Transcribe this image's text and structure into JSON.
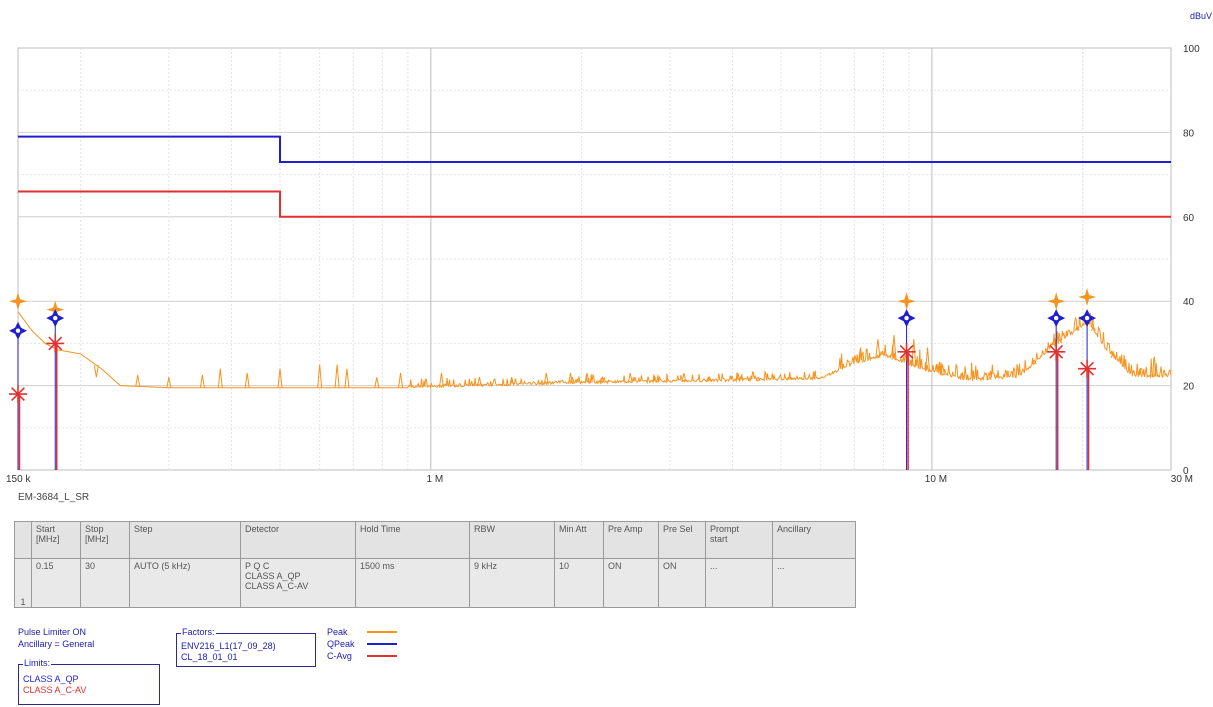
{
  "chart_data": {
    "type": "line",
    "title": "",
    "ylabel": "dBuV",
    "xlabel": "",
    "x_scale": "log",
    "xlim_mhz": [
      0.15,
      30
    ],
    "ylim": [
      0,
      100
    ],
    "y_ticks": [
      0,
      20,
      40,
      60,
      80,
      100
    ],
    "x_tick_labels": [
      {
        "value": 0.15,
        "label": "150 k"
      },
      {
        "value": 1,
        "label": "1 M"
      },
      {
        "value": 10,
        "label": "10 M"
      },
      {
        "value": 30,
        "label": "30 M"
      }
    ],
    "grid": true,
    "limit_lines": [
      {
        "name": "CLASS A_QP",
        "color": "#1f1fcf",
        "points": [
          [
            0.15,
            79
          ],
          [
            0.5,
            79
          ],
          [
            0.5,
            73
          ],
          [
            30,
            73
          ]
        ]
      },
      {
        "name": "CLASS A_C-AV",
        "color": "#e03030",
        "points": [
          [
            0.15,
            66
          ],
          [
            0.5,
            66
          ],
          [
            0.5,
            60
          ],
          [
            30,
            60
          ]
        ]
      }
    ],
    "series": [
      {
        "name": "Peak",
        "color": "#f7931e",
        "style": "spectrum",
        "floor": [
          [
            0.15,
            37.5
          ],
          [
            0.16,
            33
          ],
          [
            0.17,
            30
          ],
          [
            0.18,
            28.5
          ],
          [
            0.2,
            27.5
          ],
          [
            0.22,
            24
          ],
          [
            0.24,
            20
          ],
          [
            0.3,
            19.5
          ],
          [
            1,
            19.5
          ],
          [
            2,
            20.5
          ],
          [
            4,
            21
          ],
          [
            6,
            21.5
          ],
          [
            7,
            25
          ],
          [
            8,
            27
          ],
          [
            10,
            23
          ],
          [
            12,
            21
          ],
          [
            15,
            22
          ],
          [
            17,
            28
          ],
          [
            19,
            32
          ],
          [
            20.5,
            35
          ],
          [
            22,
            29
          ],
          [
            25,
            22
          ],
          [
            30,
            22
          ]
        ],
        "spikes": [
          [
            0.215,
            22
          ],
          [
            0.26,
            22.5
          ],
          [
            0.3,
            22
          ],
          [
            0.35,
            22.5
          ],
          [
            0.38,
            24
          ],
          [
            0.43,
            23
          ],
          [
            0.5,
            24
          ],
          [
            0.6,
            25
          ],
          [
            0.65,
            25
          ],
          [
            0.68,
            24
          ],
          [
            0.78,
            22
          ],
          [
            0.87,
            23
          ],
          [
            1.05,
            23
          ],
          [
            1.25,
            22
          ],
          [
            1.45,
            22
          ],
          [
            1.7,
            23
          ],
          [
            1.9,
            23
          ],
          [
            2.05,
            23
          ],
          [
            2.2,
            22
          ],
          [
            2.5,
            23
          ],
          [
            2.8,
            22
          ],
          [
            3.2,
            23
          ],
          [
            3.6,
            22
          ],
          [
            4.1,
            23
          ],
          [
            4.5,
            22
          ],
          [
            5.2,
            22
          ],
          [
            5.8,
            22
          ],
          [
            7.2,
            29
          ],
          [
            7.8,
            31
          ],
          [
            8.4,
            32
          ],
          [
            9.2,
            31
          ],
          [
            9.8,
            29
          ],
          [
            10.5,
            25
          ],
          [
            11.5,
            23
          ],
          [
            13,
            23
          ],
          [
            16,
            26
          ],
          [
            18,
            31
          ],
          [
            19.5,
            34
          ],
          [
            21,
            34
          ],
          [
            23,
            28
          ],
          [
            26,
            24
          ],
          [
            28,
            24
          ]
        ]
      }
    ],
    "markers": [
      {
        "x": 0.15,
        "peak": 40,
        "qpeak": 33,
        "cavg": 18
      },
      {
        "x": 0.178,
        "peak": 38,
        "qpeak": 36,
        "cavg": 30
      },
      {
        "x": 8.9,
        "peak": 40,
        "qpeak": 36,
        "cavg": 28
      },
      {
        "x": 17.7,
        "peak": 40,
        "qpeak": 36,
        "cavg": 28
      },
      {
        "x": 20.4,
        "peak": 41,
        "qpeak": 36,
        "cavg": 24
      }
    ]
  },
  "caption": "EM-3684_L_SR",
  "table": {
    "headers": [
      "",
      "Start\n[MHz]",
      "Stop\n[MHz]",
      "Step",
      "Detector",
      "Hold Time",
      "RBW",
      "Min Att",
      "Pre Amp",
      "Pre Sel",
      "Prompt\nstart",
      "Ancillary"
    ],
    "row": [
      "1",
      "0.15",
      "30",
      "AUTO (5 kHz)",
      "P Q C\nCLASS A_QP\nCLASS A_C-AV",
      "1500 ms",
      "9 kHz",
      "10",
      "ON",
      "ON",
      "...",
      "..."
    ]
  },
  "legend": {
    "pulse_limiter": "Pulse Limiter ON",
    "ancillary": "Ancillary = General",
    "limits_title": "Limits:",
    "limits": [
      "CLASS A_QP",
      "CLASS A_C-AV"
    ],
    "limits_colors": [
      "#1f1fcf",
      "#e03030"
    ],
    "factors_title": "Factors:",
    "factors": [
      "ENV216_L1(17_09_28)",
      "CL_18_01_01"
    ],
    "traces": [
      {
        "name": "Peak",
        "color": "#f7931e"
      },
      {
        "name": "QPeak",
        "color": "#1f1fcf"
      },
      {
        "name": "C-Avg",
        "color": "#e03030"
      }
    ]
  }
}
